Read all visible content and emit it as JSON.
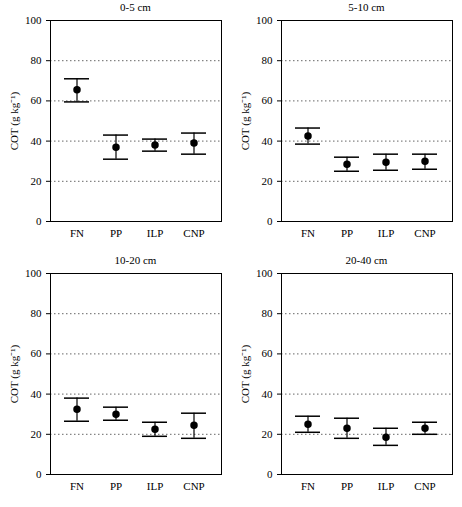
{
  "chart_data": [
    {
      "type": "scatter",
      "title": "0-5 cm",
      "ylabel": "COT (g kg⁻¹)",
      "categories": [
        "FN",
        "PP",
        "ILP",
        "CNP"
      ],
      "values": [
        65.5,
        37,
        38,
        39
      ],
      "lower": [
        59.5,
        31,
        35,
        33.5
      ],
      "upper": [
        71,
        43,
        41,
        44
      ],
      "color": "#000000",
      "ylim": [
        0,
        100
      ],
      "yticks": [
        0,
        20,
        40,
        60,
        80,
        100
      ],
      "grid": true
    },
    {
      "type": "scatter",
      "title": "5-10 cm",
      "ylabel": "COT (g kg⁻¹)",
      "categories": [
        "FN",
        "PP",
        "ILP",
        "CNP"
      ],
      "values": [
        42.5,
        28.5,
        29.5,
        30
      ],
      "lower": [
        38.5,
        25,
        25.5,
        26
      ],
      "upper": [
        46.5,
        32,
        33.5,
        33.5
      ],
      "color": "#000000",
      "ylim": [
        0,
        100
      ],
      "yticks": [
        0,
        20,
        40,
        60,
        80,
        100
      ],
      "grid": true
    },
    {
      "type": "scatter",
      "title": "10-20 cm",
      "ylabel": "COT (g kg⁻¹)",
      "categories": [
        "FN",
        "PP",
        "ILP",
        "CNP"
      ],
      "values": [
        32.5,
        30,
        22.5,
        24.5
      ],
      "lower": [
        26.5,
        27,
        19,
        18
      ],
      "upper": [
        38,
        33.5,
        26,
        30.5
      ],
      "color": "#000000",
      "ylim": [
        0,
        100
      ],
      "yticks": [
        0,
        20,
        40,
        60,
        80,
        100
      ],
      "grid": true
    },
    {
      "type": "scatter",
      "title": "20-40 cm",
      "ylabel": "COT (g kg⁻¹)",
      "categories": [
        "FN",
        "PP",
        "ILP",
        "CNP"
      ],
      "values": [
        25,
        23,
        18.5,
        23
      ],
      "lower": [
        21,
        18,
        14.5,
        20
      ],
      "upper": [
        29,
        28,
        23,
        26
      ],
      "color": "#000000",
      "ylim": [
        0,
        100
      ],
      "yticks": [
        0,
        20,
        40,
        60,
        80,
        100
      ],
      "grid": true
    }
  ]
}
